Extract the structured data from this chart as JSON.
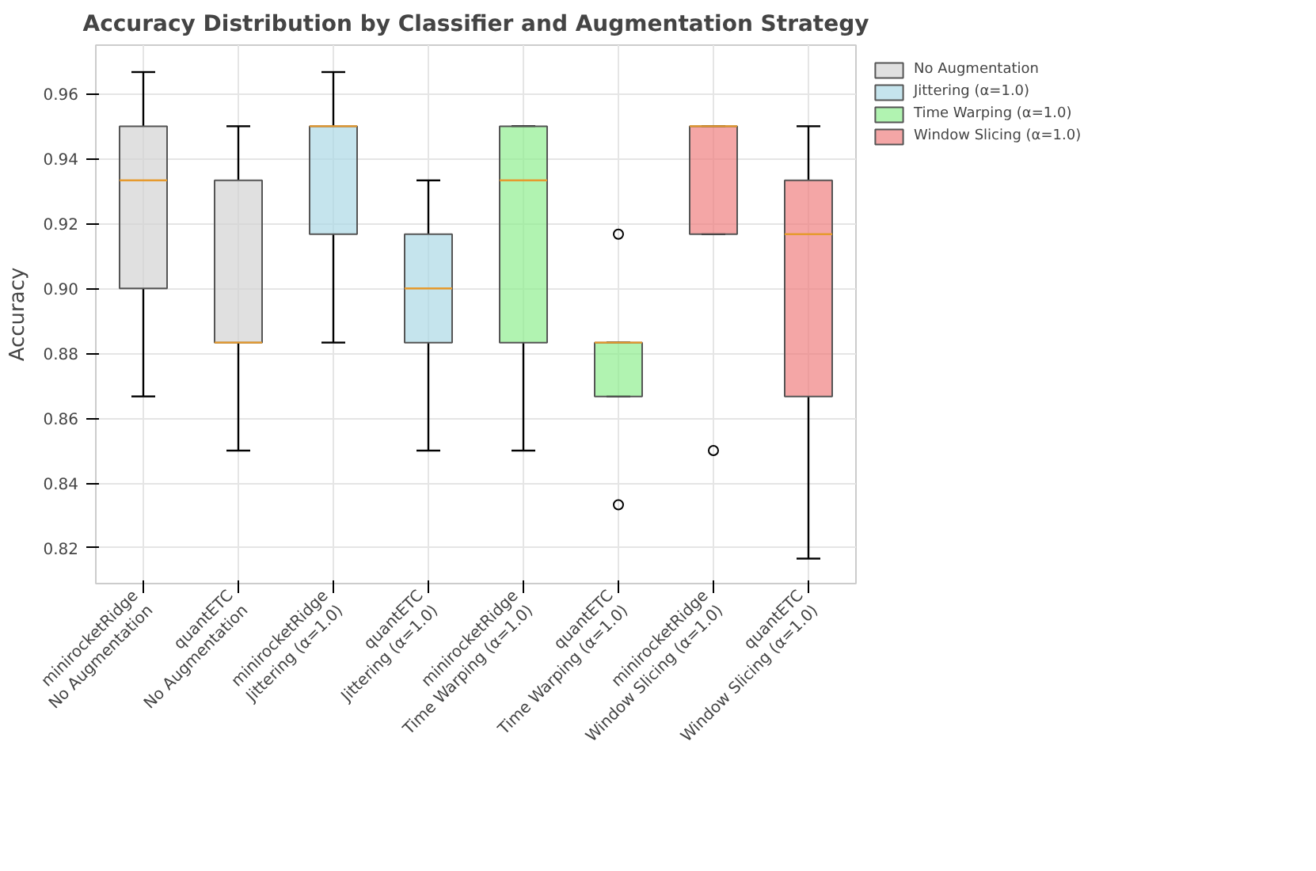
{
  "chart_data": {
    "type": "box",
    "title": "Accuracy Distribution by Classifier and Augmentation Strategy",
    "ylabel": "Accuracy",
    "categories": [
      "minirocketRidge\nNo Augmentation",
      "quantETC\nNo Augmentation",
      "minirocketRidge\nJittering (α=1.0)",
      "quantETC\nJittering (α=1.0)",
      "minirocketRidge\nTime Warping (α=1.0)",
      "quantETC\nTime Warping (α=1.0)",
      "minirocketRidge\nWindow Slicing (α=1.0)",
      "quantETC\nWindow Slicing (α=1.0)"
    ],
    "series": [
      {
        "name": "No Augmentation",
        "color": "#d3d3d3",
        "boxes": [
          {
            "low": 0.8667,
            "q1": 0.9,
            "median": 0.9333,
            "q3": 0.95,
            "high": 0.9667
          },
          {
            "low": 0.85,
            "q1": 0.8833,
            "median": 0.8833,
            "q3": 0.9333,
            "high": 0.95
          },
          null,
          null,
          null,
          null,
          null,
          null
        ]
      },
      {
        "name": "Jittering (α=1.0)",
        "color": "#add8e6",
        "boxes": [
          null,
          null,
          {
            "low": 0.8833,
            "q1": 0.9167,
            "median": 0.95,
            "q3": 0.95,
            "high": 0.9667
          },
          {
            "low": 0.85,
            "q1": 0.8833,
            "median": 0.9,
            "q3": 0.9167,
            "high": 0.9333
          },
          null,
          null,
          null,
          null
        ]
      },
      {
        "name": "Time Warping (α=1.0)",
        "color": "#90ee90",
        "boxes": [
          null,
          null,
          null,
          null,
          {
            "low": 0.85,
            "q1": 0.8833,
            "median": 0.9333,
            "q3": 0.95,
            "high": 0.95
          },
          {
            "low": 0.8667,
            "q1": 0.8667,
            "median": 0.8833,
            "q3": 0.8833,
            "high": 0.8833,
            "outliers": [
              0.9167,
              0.8333
            ]
          },
          null,
          null
        ]
      },
      {
        "name": "Window Slicing (α=1.0)",
        "color": "#f08080",
        "boxes": [
          null,
          null,
          null,
          null,
          null,
          null,
          {
            "low": 0.9167,
            "q1": 0.9167,
            "median": 0.95,
            "q3": 0.95,
            "high": 0.95,
            "outliers": [
              0.85
            ]
          },
          {
            "low": 0.8167,
            "q1": 0.8667,
            "median": 0.9167,
            "q3": 0.9333,
            "high": 0.95
          }
        ]
      }
    ],
    "ylim": [
      0.809,
      0.975
    ],
    "yticks": [
      {
        "value": 0.82,
        "label": "0.82"
      },
      {
        "value": 0.84,
        "label": "0.84"
      },
      {
        "value": 0.86,
        "label": "0.86"
      },
      {
        "value": 0.88,
        "label": "0.88"
      },
      {
        "value": 0.9,
        "label": "0.90"
      },
      {
        "value": 0.92,
        "label": "0.92"
      },
      {
        "value": 0.94,
        "label": "0.94"
      },
      {
        "value": 0.96,
        "label": "0.96"
      }
    ],
    "grid": true,
    "legend": "top right"
  }
}
